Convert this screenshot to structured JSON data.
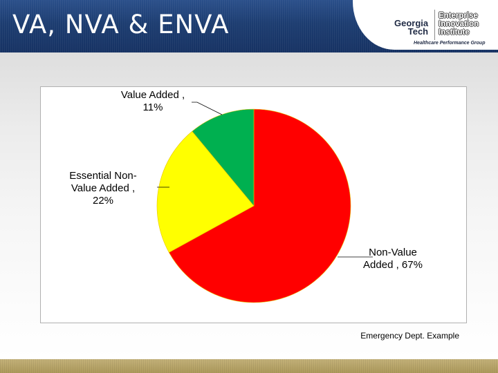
{
  "slide": {
    "title": "VA, NVA & ENVA",
    "caption": "Emergency Dept. Example"
  },
  "logo": {
    "georgia_tech": "Georgia\nTech",
    "institute": "Enterprise\nInnovation\nInstitute",
    "group": "Healthcare Performance Group"
  },
  "colors": {
    "header": "#1c3c70",
    "footer": "#b3a065",
    "slice_nva": "#ff0000",
    "slice_enva": "#ffff00",
    "slice_va": "#00b050"
  },
  "chart_data": {
    "type": "pie",
    "start": "12 o'clock, clockwise",
    "categories": [
      "Non-Value Added",
      "Essential Non-Value Added",
      "Value Added"
    ],
    "values": [
      67,
      22,
      11
    ],
    "unit": "%",
    "colors": [
      "#ff0000",
      "#ffff00",
      "#00b050"
    ],
    "data_labels": [
      "Non-Value\nAdded , 67%",
      "Essential Non-\nValue Added ,\n22%",
      "Value Added ,\n11%"
    ],
    "legend": "none"
  }
}
